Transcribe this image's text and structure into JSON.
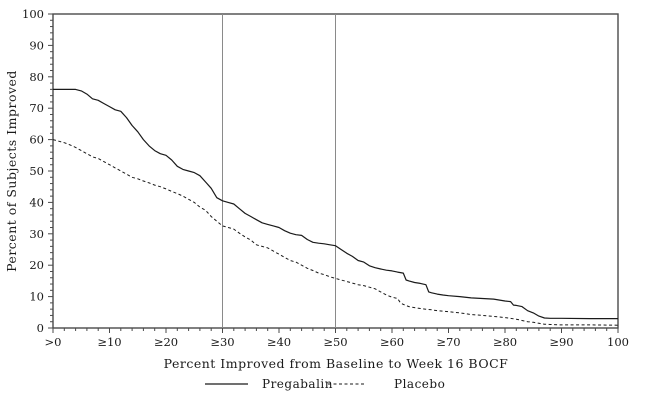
{
  "figure": {
    "background": "#ffffff",
    "axis_color": "#4a4a4a",
    "curve_color": "#1a1a1a",
    "refline_color": "#8a8a8a"
  },
  "chart_data": {
    "type": "line",
    "title": "",
    "xlabel": "Percent Improved from Baseline to Week 16 BOCF",
    "ylabel": "Percent of Subjects Improved",
    "xlim": [
      0,
      100
    ],
    "ylim": [
      0,
      100
    ],
    "grid": "off",
    "legend_position": "bottom-center",
    "x_ticks": {
      "values": [
        0,
        10,
        20,
        30,
        40,
        50,
        60,
        70,
        80,
        90,
        100
      ],
      "labels": [
        ">0",
        "≥10",
        "≥20",
        "≥30",
        "≥40",
        "≥50",
        "≥60",
        "≥70",
        "≥80",
        "≥90",
        "100"
      ],
      "minor_interval": 2
    },
    "y_ticks": {
      "values": [
        0,
        10,
        20,
        30,
        40,
        50,
        60,
        70,
        80,
        90,
        100
      ],
      "labels": [
        "0",
        "10",
        "20",
        "30",
        "40",
        "50",
        "60",
        "70",
        "80",
        "90",
        "100"
      ],
      "minor_interval": 2
    },
    "reference_lines_x": [
      30,
      50
    ],
    "series": [
      {
        "name": "Pregabalin",
        "style": "solid",
        "points": [
          [
            0,
            76
          ],
          [
            4,
            76
          ],
          [
            5,
            75.5
          ],
          [
            6,
            74.5
          ],
          [
            7,
            73
          ],
          [
            8,
            72.5
          ],
          [
            9,
            71.5
          ],
          [
            10,
            70.5
          ],
          [
            11,
            69.5
          ],
          [
            12,
            69
          ],
          [
            13,
            67
          ],
          [
            14,
            64.5
          ],
          [
            15,
            62.5
          ],
          [
            16,
            60
          ],
          [
            17,
            58
          ],
          [
            18,
            56.5
          ],
          [
            19,
            55.5
          ],
          [
            20,
            55
          ],
          [
            21,
            53.5
          ],
          [
            22,
            51.5
          ],
          [
            23,
            50.5
          ],
          [
            24,
            50
          ],
          [
            25,
            49.5
          ],
          [
            26,
            48.5
          ],
          [
            27,
            46.5
          ],
          [
            28,
            44.5
          ],
          [
            29,
            41.5
          ],
          [
            30,
            40.5
          ],
          [
            31,
            40
          ],
          [
            32,
            39.5
          ],
          [
            33,
            38
          ],
          [
            34,
            36.5
          ],
          [
            35,
            35.5
          ],
          [
            36,
            34.5
          ],
          [
            37,
            33.5
          ],
          [
            38,
            33
          ],
          [
            39,
            32.5
          ],
          [
            40,
            32
          ],
          [
            41,
            31
          ],
          [
            42,
            30.2
          ],
          [
            43,
            29.7
          ],
          [
            44,
            29.5
          ],
          [
            45,
            28.2
          ],
          [
            46,
            27.3
          ],
          [
            47,
            27
          ],
          [
            48,
            26.8
          ],
          [
            49,
            26.5
          ],
          [
            50,
            26.2
          ],
          [
            51,
            25
          ],
          [
            52,
            23.8
          ],
          [
            53,
            22.8
          ],
          [
            54,
            21.5
          ],
          [
            55,
            21
          ],
          [
            56,
            19.8
          ],
          [
            57,
            19.2
          ],
          [
            58,
            18.8
          ],
          [
            59,
            18.4
          ],
          [
            60,
            18.2
          ],
          [
            61,
            17.8
          ],
          [
            62,
            17.5
          ],
          [
            62.5,
            15.3
          ],
          [
            63,
            15
          ],
          [
            64,
            14.5
          ],
          [
            65,
            14.2
          ],
          [
            66,
            13.8
          ],
          [
            66.5,
            11.5
          ],
          [
            67,
            11.2
          ],
          [
            68,
            10.8
          ],
          [
            69,
            10.5
          ],
          [
            70,
            10.3
          ],
          [
            72,
            10
          ],
          [
            74,
            9.6
          ],
          [
            76,
            9.4
          ],
          [
            78,
            9.2
          ],
          [
            80,
            8.6
          ],
          [
            81,
            8.4
          ],
          [
            81.5,
            7.3
          ],
          [
            82,
            7.2
          ],
          [
            83,
            6.8
          ],
          [
            84,
            5.5
          ],
          [
            85,
            4.8
          ],
          [
            86,
            3.8
          ],
          [
            87,
            3.2
          ],
          [
            88,
            3.1
          ],
          [
            90,
            3.1
          ],
          [
            95,
            3
          ],
          [
            100,
            3
          ]
        ]
      },
      {
        "name": "Placebo",
        "style": "dashed",
        "points": [
          [
            0,
            60
          ],
          [
            2,
            59
          ],
          [
            3,
            58.3
          ],
          [
            4,
            57.5
          ],
          [
            5,
            56.5
          ],
          [
            6,
            55.5
          ],
          [
            7,
            54.5
          ],
          [
            8,
            54
          ],
          [
            9,
            53
          ],
          [
            10,
            52
          ],
          [
            11,
            51
          ],
          [
            12,
            50
          ],
          [
            13,
            49
          ],
          [
            14,
            48
          ],
          [
            15,
            47.5
          ],
          [
            16,
            46.8
          ],
          [
            17,
            46.2
          ],
          [
            18,
            45.5
          ],
          [
            19,
            45
          ],
          [
            20,
            44.3
          ],
          [
            21,
            43.5
          ],
          [
            22,
            42.8
          ],
          [
            23,
            42
          ],
          [
            24,
            41
          ],
          [
            25,
            40
          ],
          [
            26,
            38.5
          ],
          [
            27,
            37.5
          ],
          [
            28,
            35.5
          ],
          [
            29,
            34
          ],
          [
            30,
            32.5
          ],
          [
            31,
            32
          ],
          [
            32,
            31.5
          ],
          [
            33,
            30.2
          ],
          [
            34,
            29
          ],
          [
            35,
            28
          ],
          [
            36,
            26.5
          ],
          [
            37,
            26
          ],
          [
            38,
            25.5
          ],
          [
            39,
            24.5
          ],
          [
            40,
            23.5
          ],
          [
            41,
            22.5
          ],
          [
            42,
            21.5
          ],
          [
            43,
            21
          ],
          [
            44,
            20
          ],
          [
            45,
            19
          ],
          [
            46,
            18.3
          ],
          [
            47,
            17.5
          ],
          [
            48,
            17
          ],
          [
            49,
            16.3
          ],
          [
            50,
            15.8
          ],
          [
            51,
            15.3
          ],
          [
            52,
            14.8
          ],
          [
            53,
            14.3
          ],
          [
            54,
            13.8
          ],
          [
            55,
            13.5
          ],
          [
            56,
            13
          ],
          [
            57,
            12.5
          ],
          [
            58,
            11.5
          ],
          [
            59,
            10.5
          ],
          [
            60,
            9.8
          ],
          [
            61,
            9.4
          ],
          [
            61.5,
            8
          ],
          [
            62,
            7.5
          ],
          [
            63,
            6.8
          ],
          [
            64,
            6.5
          ],
          [
            65,
            6.2
          ],
          [
            66,
            6
          ],
          [
            67,
            5.8
          ],
          [
            68,
            5.5
          ],
          [
            70,
            5.2
          ],
          [
            72,
            4.8
          ],
          [
            74,
            4.3
          ],
          [
            76,
            4
          ],
          [
            78,
            3.7
          ],
          [
            80,
            3.3
          ],
          [
            82,
            2.8
          ],
          [
            84,
            2
          ],
          [
            85,
            1.8
          ],
          [
            86,
            1.5
          ],
          [
            87,
            1.2
          ],
          [
            88,
            1.1
          ],
          [
            90,
            1
          ],
          [
            95,
            1
          ],
          [
            100,
            0.9
          ]
        ]
      }
    ]
  }
}
